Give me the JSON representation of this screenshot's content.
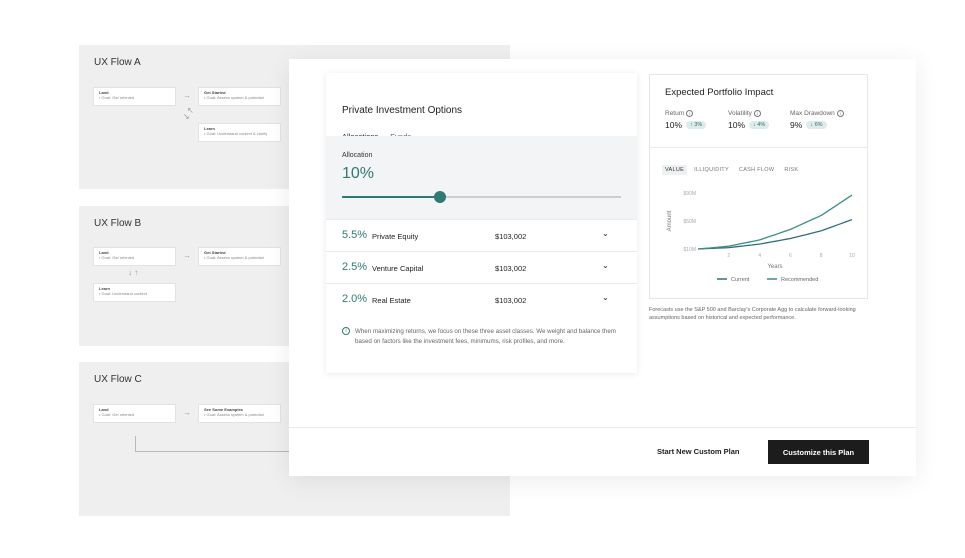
{
  "flows": {
    "a": {
      "title": "UX Flow A",
      "nodes": [
        {
          "title": "Land",
          "sub": "• Goal: Get oriented"
        },
        {
          "title": "Get Started",
          "sub": "• Goal: Assess system & potential"
        },
        {
          "title": "Learn",
          "sub": "• Goal: Understand context & clarify"
        }
      ]
    },
    "b": {
      "title": "UX Flow B",
      "nodes": [
        {
          "title": "Land",
          "sub": "• Goal: Get oriented"
        },
        {
          "title": "Get Started",
          "sub": "• Goal: Assess system & potential"
        },
        {
          "title": "Learn",
          "sub": "• Goal: Understand context"
        }
      ]
    },
    "c": {
      "title": "UX Flow C",
      "nodes": [
        {
          "title": "Land",
          "sub": "• Goal: Get oriented"
        },
        {
          "title": "See Some Examples",
          "sub": "• Goal: Assess system & potential"
        }
      ]
    }
  },
  "options": {
    "title": "Private Investment Options",
    "tabs": [
      "Allocations",
      "Funds"
    ],
    "allocation_label": "Allocation",
    "allocation_value": "10%",
    "slider_fraction": 0.35,
    "rows": [
      {
        "pct": "5.5%",
        "name": "Private Equity",
        "amount": "$103,002"
      },
      {
        "pct": "2.5%",
        "name": "Venture Capital",
        "amount": "$103,002"
      },
      {
        "pct": "2.0%",
        "name": "Real Estate",
        "amount": "$103,002"
      }
    ],
    "info_icon": "i",
    "info_text": "When maximizing returns, we focus on these three asset classes. We weight and balance them based on factors like the investment fees, minimums, risk profiles, and more."
  },
  "impact": {
    "title": "Expected Portfolio Impact",
    "metrics": [
      {
        "label": "Return",
        "value": "10%",
        "badge": "↑ 3%"
      },
      {
        "label": "Volatility",
        "value": "10%",
        "badge": "↓ 4%"
      },
      {
        "label": "Max Drawdown",
        "value": "9%",
        "badge": "↓ 6%"
      }
    ],
    "chart_tabs": [
      "VALUE",
      "ILLIQUIDITY",
      "CASH FLOW",
      "RISK"
    ],
    "footnote": "Forecasts use the S&P 500 and Barclay's Corporate Agg to calculate forward-looking assumptions based on historical and expected performance."
  },
  "chart_data": {
    "type": "line",
    "xlabel": "Years",
    "ylabel": "Amount",
    "x_ticks": [
      2,
      4,
      6,
      8,
      10
    ],
    "y_ticks": [
      "$10M",
      "$50M",
      "$90M"
    ],
    "xlim": [
      0,
      10
    ],
    "ylim": [
      10,
      90
    ],
    "series": [
      {
        "name": "Current",
        "color": "#2f6f7a",
        "x": [
          0,
          2,
          4,
          6,
          8,
          10
        ],
        "y": [
          10,
          12,
          17,
          25,
          36,
          52
        ]
      },
      {
        "name": "Recommended",
        "color": "#3a8f84",
        "x": [
          0,
          2,
          4,
          6,
          8,
          10
        ],
        "y": [
          10,
          14,
          23,
          38,
          58,
          87
        ]
      }
    ],
    "legend": "bottom",
    "grid": false
  },
  "footer": {
    "secondary_label": "Start New Custom Plan",
    "primary_label": "Customize this Plan"
  },
  "colors": {
    "accent": "#2f7a72",
    "primary_button": "#1c1c1c"
  }
}
